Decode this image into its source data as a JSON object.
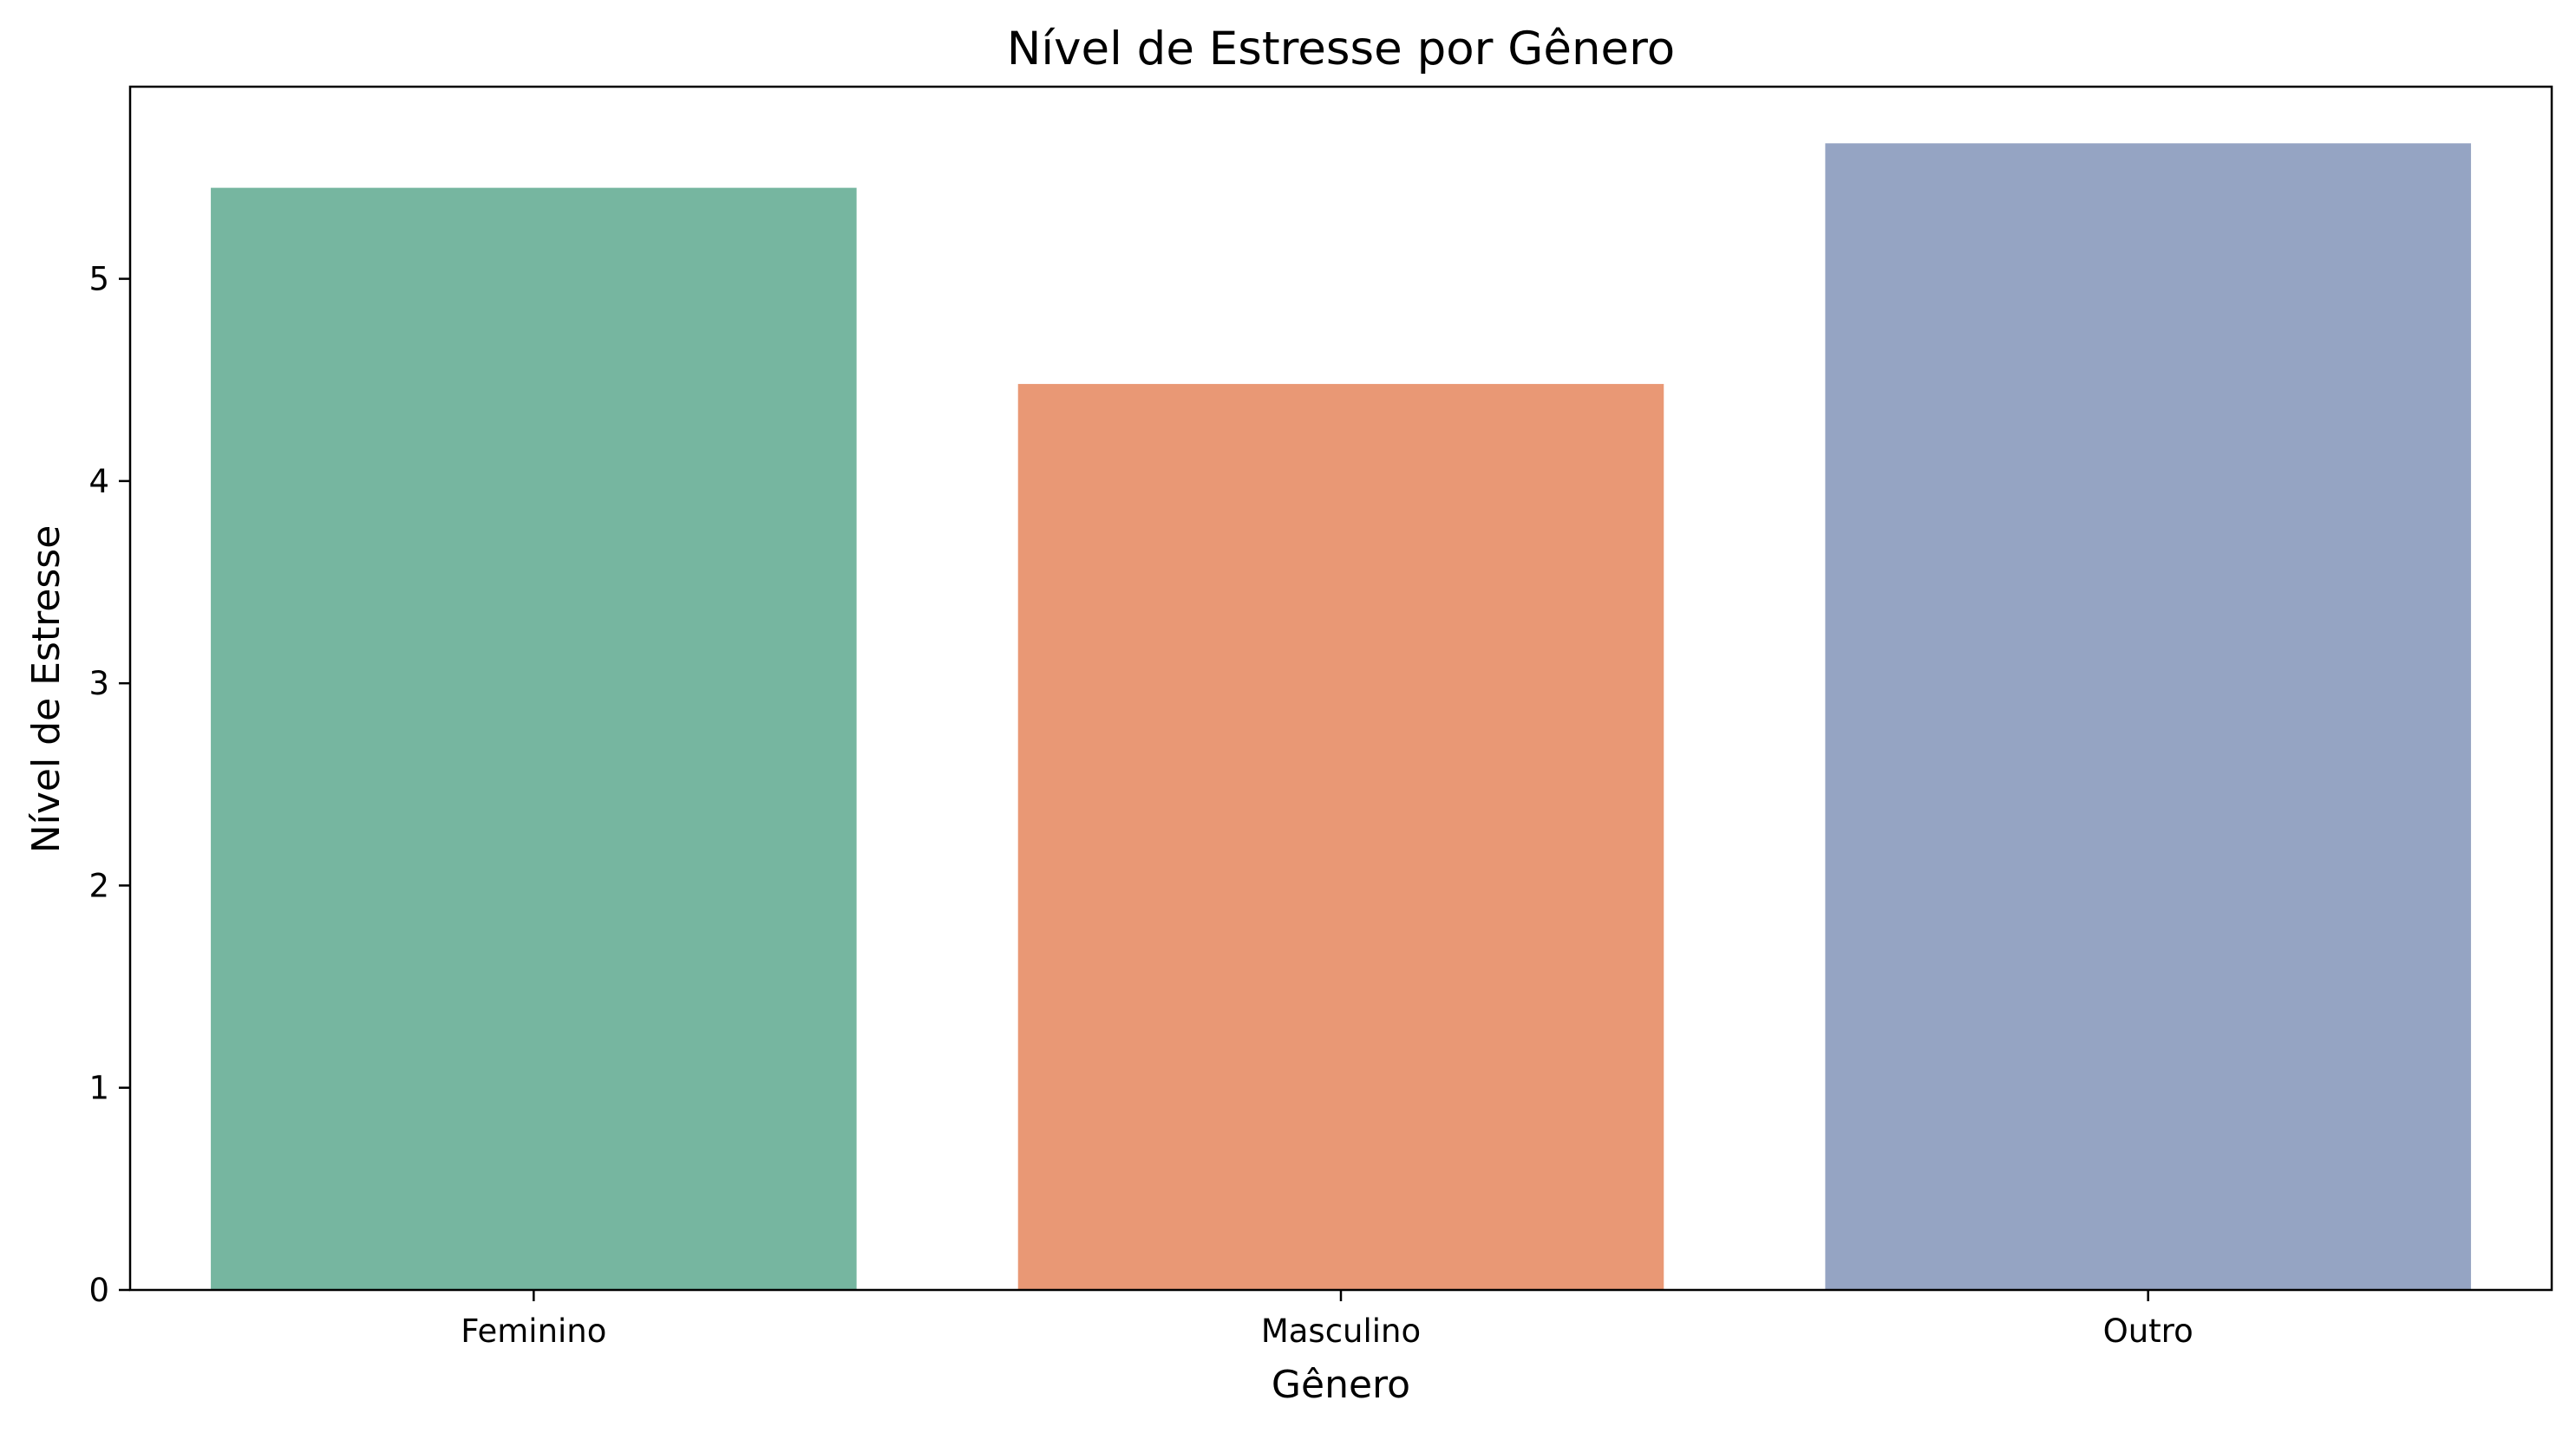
{
  "chart_data": {
    "type": "bar",
    "title": "Nível de Estresse por Gênero",
    "xlabel": "Gênero",
    "ylabel": "Nível de Estresse",
    "categories": [
      "Feminino",
      "Masculino",
      "Outro"
    ],
    "values": [
      5.45,
      4.48,
      5.67
    ],
    "colors": [
      "#76b6a0",
      "#e99875",
      "#95a4c3"
    ],
    "ylim": [
      0,
      5.95
    ],
    "yticks": [
      "0",
      "1",
      "2",
      "3",
      "4",
      "5"
    ],
    "grid": false,
    "legend": "none"
  }
}
